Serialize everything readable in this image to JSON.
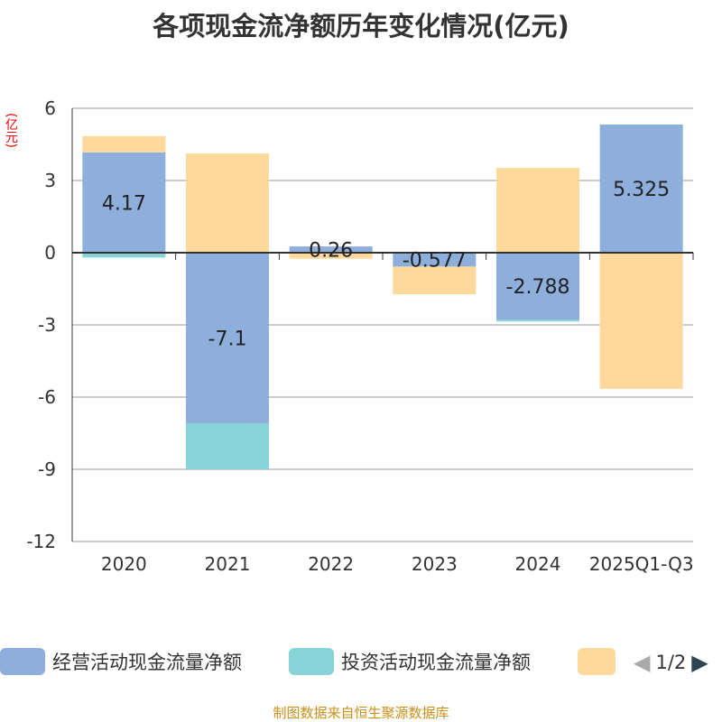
{
  "title": "各项现金流净额历年变化情况(亿元)",
  "source": "制图数据来自恒生聚源数据库",
  "legend_page": "1/2",
  "chart_data": {
    "type": "bar",
    "stacked": true,
    "title": "各项现金流净额历年变化情况(亿元)",
    "ylabel": "(亿元)",
    "ylim": [
      -12,
      6
    ],
    "yticks": [
      6,
      3,
      0,
      -3,
      -6,
      -9,
      -12
    ],
    "categories": [
      "2020",
      "2021",
      "2022",
      "2023",
      "2024",
      "2025Q1-Q3"
    ],
    "series": [
      {
        "name": "经营活动现金流量净额",
        "color": "#8eaedb",
        "values": [
          4.17,
          -7.1,
          0.26,
          -0.577,
          -2.788,
          5.325
        ],
        "labels": [
          "4.17",
          "-7.1",
          "0.26",
          "-0.577",
          "-2.788",
          "5.325"
        ]
      },
      {
        "name": "投资活动现金流量净额",
        "color": "#86d4d8",
        "values": [
          -0.2,
          -1.9,
          -0.03,
          0,
          -0.07,
          0
        ]
      },
      {
        "name": "",
        "color": "#fed99b",
        "values": [
          0.67,
          4.12,
          -0.22,
          -1.15,
          3.52,
          -5.66
        ]
      }
    ]
  }
}
